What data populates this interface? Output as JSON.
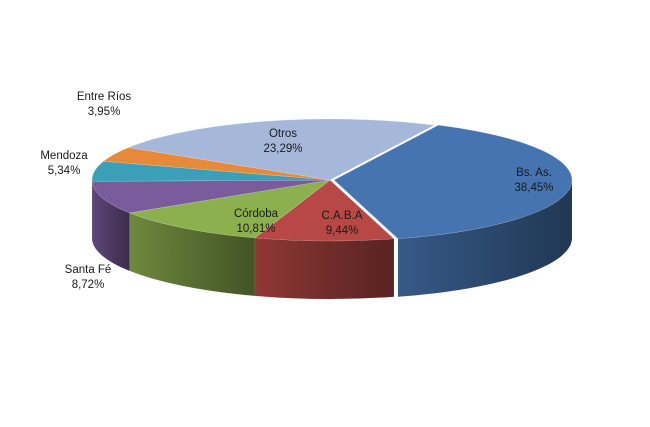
{
  "chart_data": {
    "type": "pie",
    "style": "3d-exploded",
    "title": "",
    "legend": "none",
    "slices": [
      {
        "label": "Bs. As.",
        "value_text": "38,45%",
        "value": 38.45,
        "color": "#4674B0",
        "label_pos": "inside"
      },
      {
        "label": "C.A.B.A",
        "value_text": "9,44%",
        "value": 9.44,
        "color": "#B84845",
        "label_pos": "inside"
      },
      {
        "label": "Córdoba",
        "value_text": "10,81%",
        "value": 10.81,
        "color": "#8DB04F",
        "label_pos": "inside"
      },
      {
        "label": "Santa Fé",
        "value_text": "8,72%",
        "value": 8.72,
        "color": "#7A5C9C",
        "label_pos": "outside-left-bottom"
      },
      {
        "label": "Mendoza",
        "value_text": "5,34%",
        "value": 5.34,
        "color": "#3B9FB8",
        "label_pos": "outside-left"
      },
      {
        "label": "Entre Ríos",
        "value_text": "3,95%",
        "value": 3.95,
        "color": "#E6893A",
        "label_pos": "outside-top-left"
      },
      {
        "label": "Otros",
        "value_text": "23,29%",
        "value": 23.29,
        "color": "#A6B8DA",
        "label_pos": "inside"
      }
    ]
  }
}
